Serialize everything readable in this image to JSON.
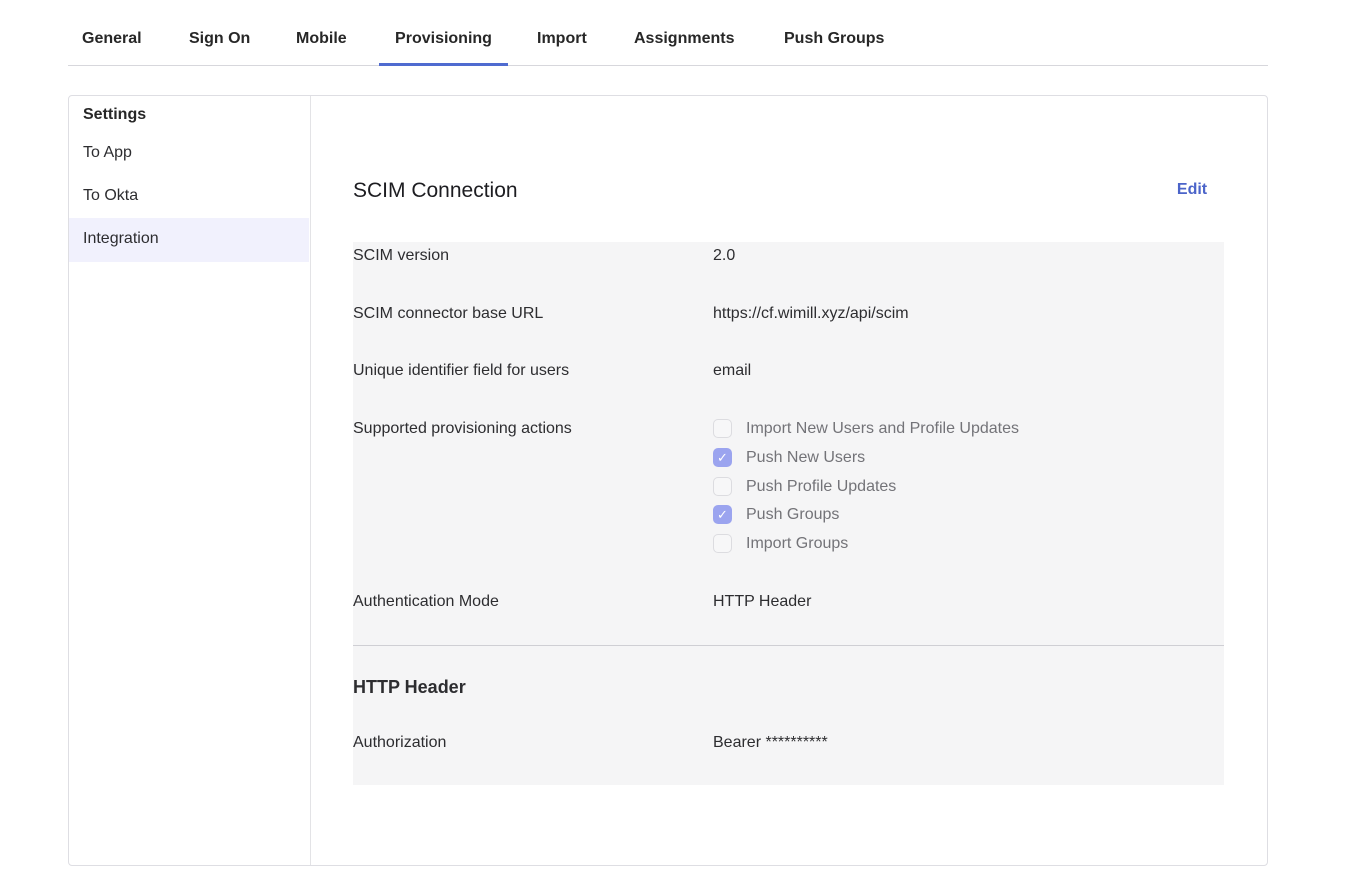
{
  "tabs": [
    {
      "label": "General"
    },
    {
      "label": "Sign On"
    },
    {
      "label": "Mobile"
    },
    {
      "label": "Provisioning",
      "active": true
    },
    {
      "label": "Import"
    },
    {
      "label": "Assignments"
    },
    {
      "label": "Push Groups"
    }
  ],
  "sidebar": {
    "heading": "Settings",
    "items": [
      {
        "label": "To App"
      },
      {
        "label": "To Okta"
      },
      {
        "label": "Integration",
        "selected": true
      }
    ]
  },
  "section": {
    "title": "SCIM Connection",
    "edit_label": "Edit",
    "rows": [
      {
        "label": "SCIM version",
        "value": "2.0"
      },
      {
        "label": "SCIM connector base URL",
        "value": "https://cf.wimill.xyz/api/scim"
      },
      {
        "label": "Unique identifier field for users",
        "value": "email"
      },
      {
        "label": "Supported provisioning actions"
      },
      {
        "label": "Authentication Mode",
        "value": "HTTP Header"
      }
    ],
    "actions": [
      {
        "label": "Import New Users and Profile Updates",
        "checked": false
      },
      {
        "label": "Push New Users",
        "checked": true
      },
      {
        "label": "Push Profile Updates",
        "checked": false
      },
      {
        "label": "Push Groups",
        "checked": true
      },
      {
        "label": "Import Groups",
        "checked": false
      }
    ]
  },
  "http_header": {
    "title": "HTTP Header",
    "label": "Authorization",
    "value": "Bearer **********"
  },
  "colors": {
    "accent": "#4f6bd0",
    "checkbox_checked": "#9ba4ef",
    "selected_bg": "#f1f1fd"
  }
}
